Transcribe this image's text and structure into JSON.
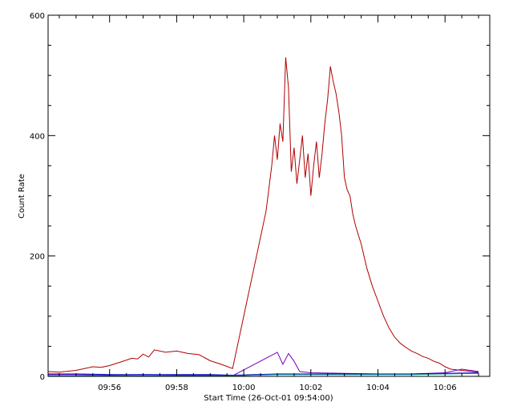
{
  "chart_data": {
    "type": "line",
    "title": "",
    "xlabel": "Start Time (26-Oct-01 09:54:00)",
    "ylabel": "Count Rate",
    "x_unit": "time (HH:MM)",
    "xlim": [
      "09:54:10",
      "10:07:20"
    ],
    "ylim": [
      0,
      600
    ],
    "x_ticks": [
      "09:56",
      "09:58",
      "10:00",
      "10:02",
      "10:04",
      "10:06"
    ],
    "y_ticks": [
      0,
      200,
      400,
      600
    ],
    "grid": false,
    "legend": "none",
    "series": [
      {
        "color": "#b00000",
        "points": [
          [
            "09:54:10",
            8
          ],
          [
            "09:54:30",
            7
          ],
          [
            "09:55:00",
            10
          ],
          [
            "09:55:30",
            16
          ],
          [
            "09:55:45",
            15
          ],
          [
            "09:56:00",
            18
          ],
          [
            "09:56:20",
            24
          ],
          [
            "09:56:40",
            30
          ],
          [
            "09:56:50",
            29
          ],
          [
            "09:57:00",
            37
          ],
          [
            "09:57:10",
            32
          ],
          [
            "09:57:20",
            44
          ],
          [
            "09:57:40",
            40
          ],
          [
            "09:58:00",
            42
          ],
          [
            "09:58:20",
            38
          ],
          [
            "09:58:40",
            36
          ],
          [
            "09:59:00",
            26
          ],
          [
            "09:59:20",
            20
          ],
          [
            "09:59:40",
            13
          ],
          [
            "10:00:40",
            275
          ],
          [
            "10:00:50",
            350
          ],
          [
            "10:00:55",
            400
          ],
          [
            "10:01:00",
            360
          ],
          [
            "10:01:05",
            420
          ],
          [
            "10:01:10",
            390
          ],
          [
            "10:01:15",
            530
          ],
          [
            "10:01:20",
            480
          ],
          [
            "10:01:25",
            340
          ],
          [
            "10:01:30",
            380
          ],
          [
            "10:01:35",
            320
          ],
          [
            "10:01:40",
            360
          ],
          [
            "10:01:45",
            400
          ],
          [
            "10:01:50",
            330
          ],
          [
            "10:01:55",
            370
          ],
          [
            "10:02:00",
            300
          ],
          [
            "10:02:05",
            350
          ],
          [
            "10:02:10",
            390
          ],
          [
            "10:02:15",
            330
          ],
          [
            "10:02:20",
            370
          ],
          [
            "10:02:25",
            420
          ],
          [
            "10:02:30",
            460
          ],
          [
            "10:02:35",
            515
          ],
          [
            "10:02:40",
            490
          ],
          [
            "10:02:45",
            470
          ],
          [
            "10:02:50",
            440
          ],
          [
            "10:02:55",
            400
          ],
          [
            "10:03:00",
            330
          ],
          [
            "10:03:05",
            310
          ],
          [
            "10:03:10",
            300
          ],
          [
            "10:03:15",
            270
          ],
          [
            "10:03:20",
            250
          ],
          [
            "10:03:30",
            220
          ],
          [
            "10:03:40",
            180
          ],
          [
            "10:03:50",
            150
          ],
          [
            "10:04:00",
            125
          ],
          [
            "10:04:10",
            100
          ],
          [
            "10:04:20",
            80
          ],
          [
            "10:04:30",
            65
          ],
          [
            "10:04:40",
            55
          ],
          [
            "10:04:50",
            48
          ],
          [
            "10:05:00",
            42
          ],
          [
            "10:05:10",
            38
          ],
          [
            "10:05:20",
            33
          ],
          [
            "10:05:30",
            30
          ],
          [
            "10:05:40",
            25
          ],
          [
            "10:05:50",
            22
          ],
          [
            "10:06:00",
            16
          ],
          [
            "10:06:10",
            12
          ],
          [
            "10:06:30",
            10
          ],
          [
            "10:07:00",
            7
          ]
        ]
      },
      {
        "color": "#7a00c0",
        "points": [
          [
            "09:54:10",
            3
          ],
          [
            "09:55:00",
            3
          ],
          [
            "09:56:00",
            2
          ],
          [
            "09:57:00",
            3
          ],
          [
            "09:58:00",
            2
          ],
          [
            "09:59:00",
            2
          ],
          [
            "09:59:40",
            1
          ],
          [
            "10:01:00",
            40
          ],
          [
            "10:01:10",
            20
          ],
          [
            "10:01:20",
            38
          ],
          [
            "10:01:30",
            25
          ],
          [
            "10:01:40",
            8
          ],
          [
            "10:02:00",
            6
          ],
          [
            "10:03:00",
            5
          ],
          [
            "10:04:00",
            4
          ],
          [
            "10:05:00",
            4
          ],
          [
            "10:06:00",
            6
          ],
          [
            "10:06:30",
            12
          ],
          [
            "10:07:00",
            8
          ]
        ]
      },
      {
        "color": "#0000c0",
        "points": [
          [
            "09:54:10",
            4
          ],
          [
            "09:55:00",
            4
          ],
          [
            "09:56:00",
            3
          ],
          [
            "09:57:00",
            3
          ],
          [
            "09:58:00",
            3
          ],
          [
            "09:59:00",
            3
          ],
          [
            "09:59:40",
            2
          ],
          [
            "10:01:00",
            4
          ],
          [
            "10:02:00",
            4
          ],
          [
            "10:03:00",
            4
          ],
          [
            "10:04:00",
            4
          ],
          [
            "10:05:00",
            4
          ],
          [
            "10:06:00",
            5
          ],
          [
            "10:07:00",
            6
          ]
        ]
      },
      {
        "color": "#009090",
        "points": [
          [
            "09:54:10",
            1
          ],
          [
            "09:56:00",
            1
          ],
          [
            "09:58:00",
            1
          ],
          [
            "09:59:40",
            1
          ],
          [
            "10:01:00",
            3
          ],
          [
            "10:02:00",
            3
          ],
          [
            "10:03:00",
            3
          ],
          [
            "10:04:00",
            3
          ],
          [
            "10:05:00",
            3
          ],
          [
            "10:06:00",
            4
          ],
          [
            "10:07:00",
            5
          ]
        ]
      }
    ]
  }
}
